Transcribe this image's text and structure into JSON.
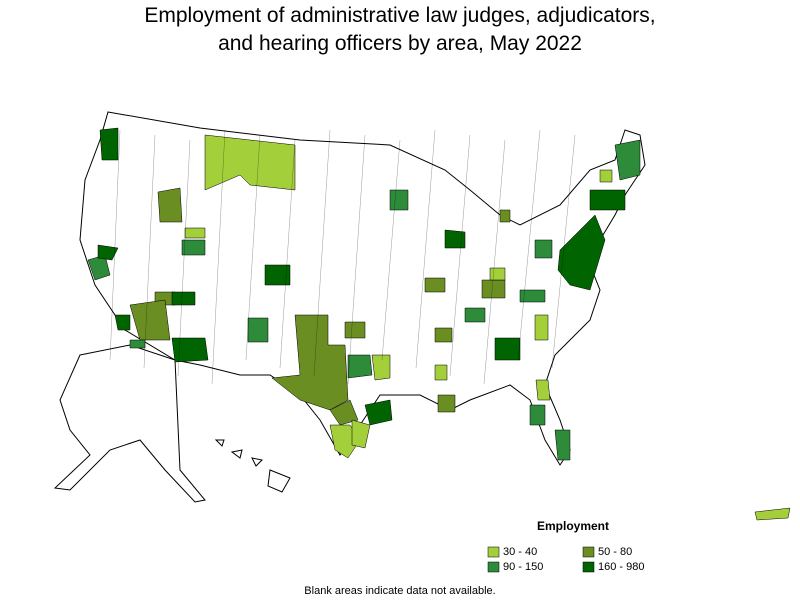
{
  "title": [
    "Employment of administrative law judges, adjudicators,",
    "and hearing officers by area, May 2022"
  ],
  "legend": {
    "title": "Employment",
    "items": [
      {
        "label": "30 - 40",
        "color": "#a3cf3a"
      },
      {
        "label": "50 - 80",
        "color": "#6b8e23"
      },
      {
        "label": "90 - 150",
        "color": "#2e8b3a"
      },
      {
        "label": "160 - 980",
        "color": "#006400"
      }
    ]
  },
  "footnote": "Blank areas indicate data not available."
}
